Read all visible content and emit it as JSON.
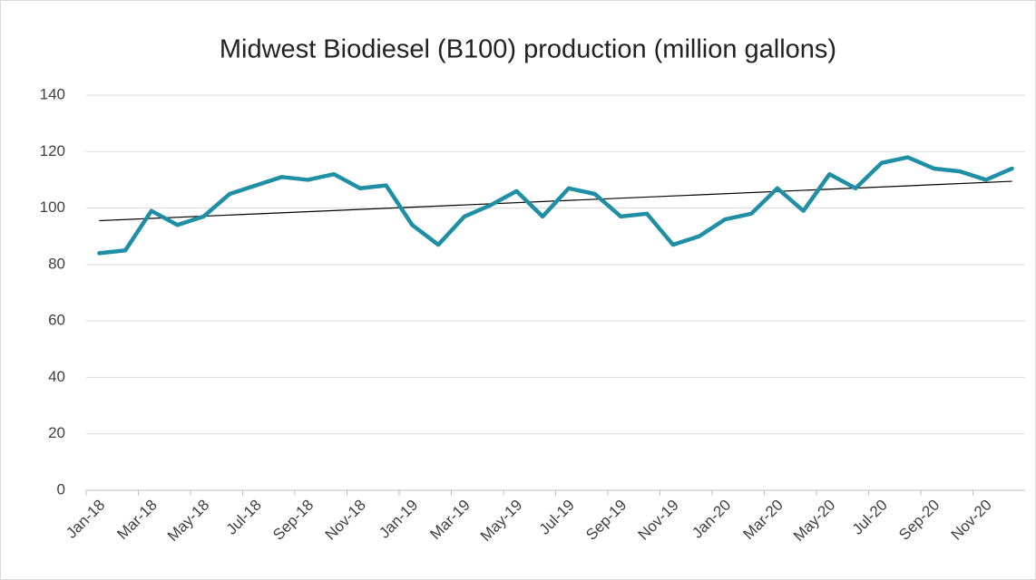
{
  "chart_data": {
    "type": "line",
    "title": "Midwest Biodiesel (B100) production (million gallons)",
    "categories": [
      "Jan-18",
      null,
      "Mar-18",
      null,
      "May-18",
      null,
      "Jul-18",
      null,
      "Sep-18",
      null,
      "Nov-18",
      null,
      "Jan-19",
      null,
      "Mar-19",
      null,
      "May-19",
      null,
      "Jul-19",
      null,
      "Sep-19",
      null,
      "Nov-19",
      null,
      "Jan-20",
      null,
      "Mar-20",
      null,
      "May-20",
      null,
      "Jul-20",
      null,
      "Sep-20",
      null,
      "Nov-20",
      null
    ],
    "values": [
      84,
      85,
      99,
      94,
      97,
      105,
      108,
      111,
      110,
      112,
      107,
      108,
      94,
      87,
      97,
      101,
      106,
      97,
      107,
      105,
      97,
      98,
      87,
      90,
      96,
      98,
      107,
      99,
      112,
      107,
      116,
      118,
      114,
      113,
      110,
      114
    ],
    "color": "#1f8fa6",
    "trendline": {
      "type": "linear",
      "color": "#000000"
    },
    "ylim": [
      0,
      140
    ],
    "yticks": [
      0,
      20,
      40,
      60,
      80,
      100,
      120,
      140
    ],
    "grid": true
  }
}
